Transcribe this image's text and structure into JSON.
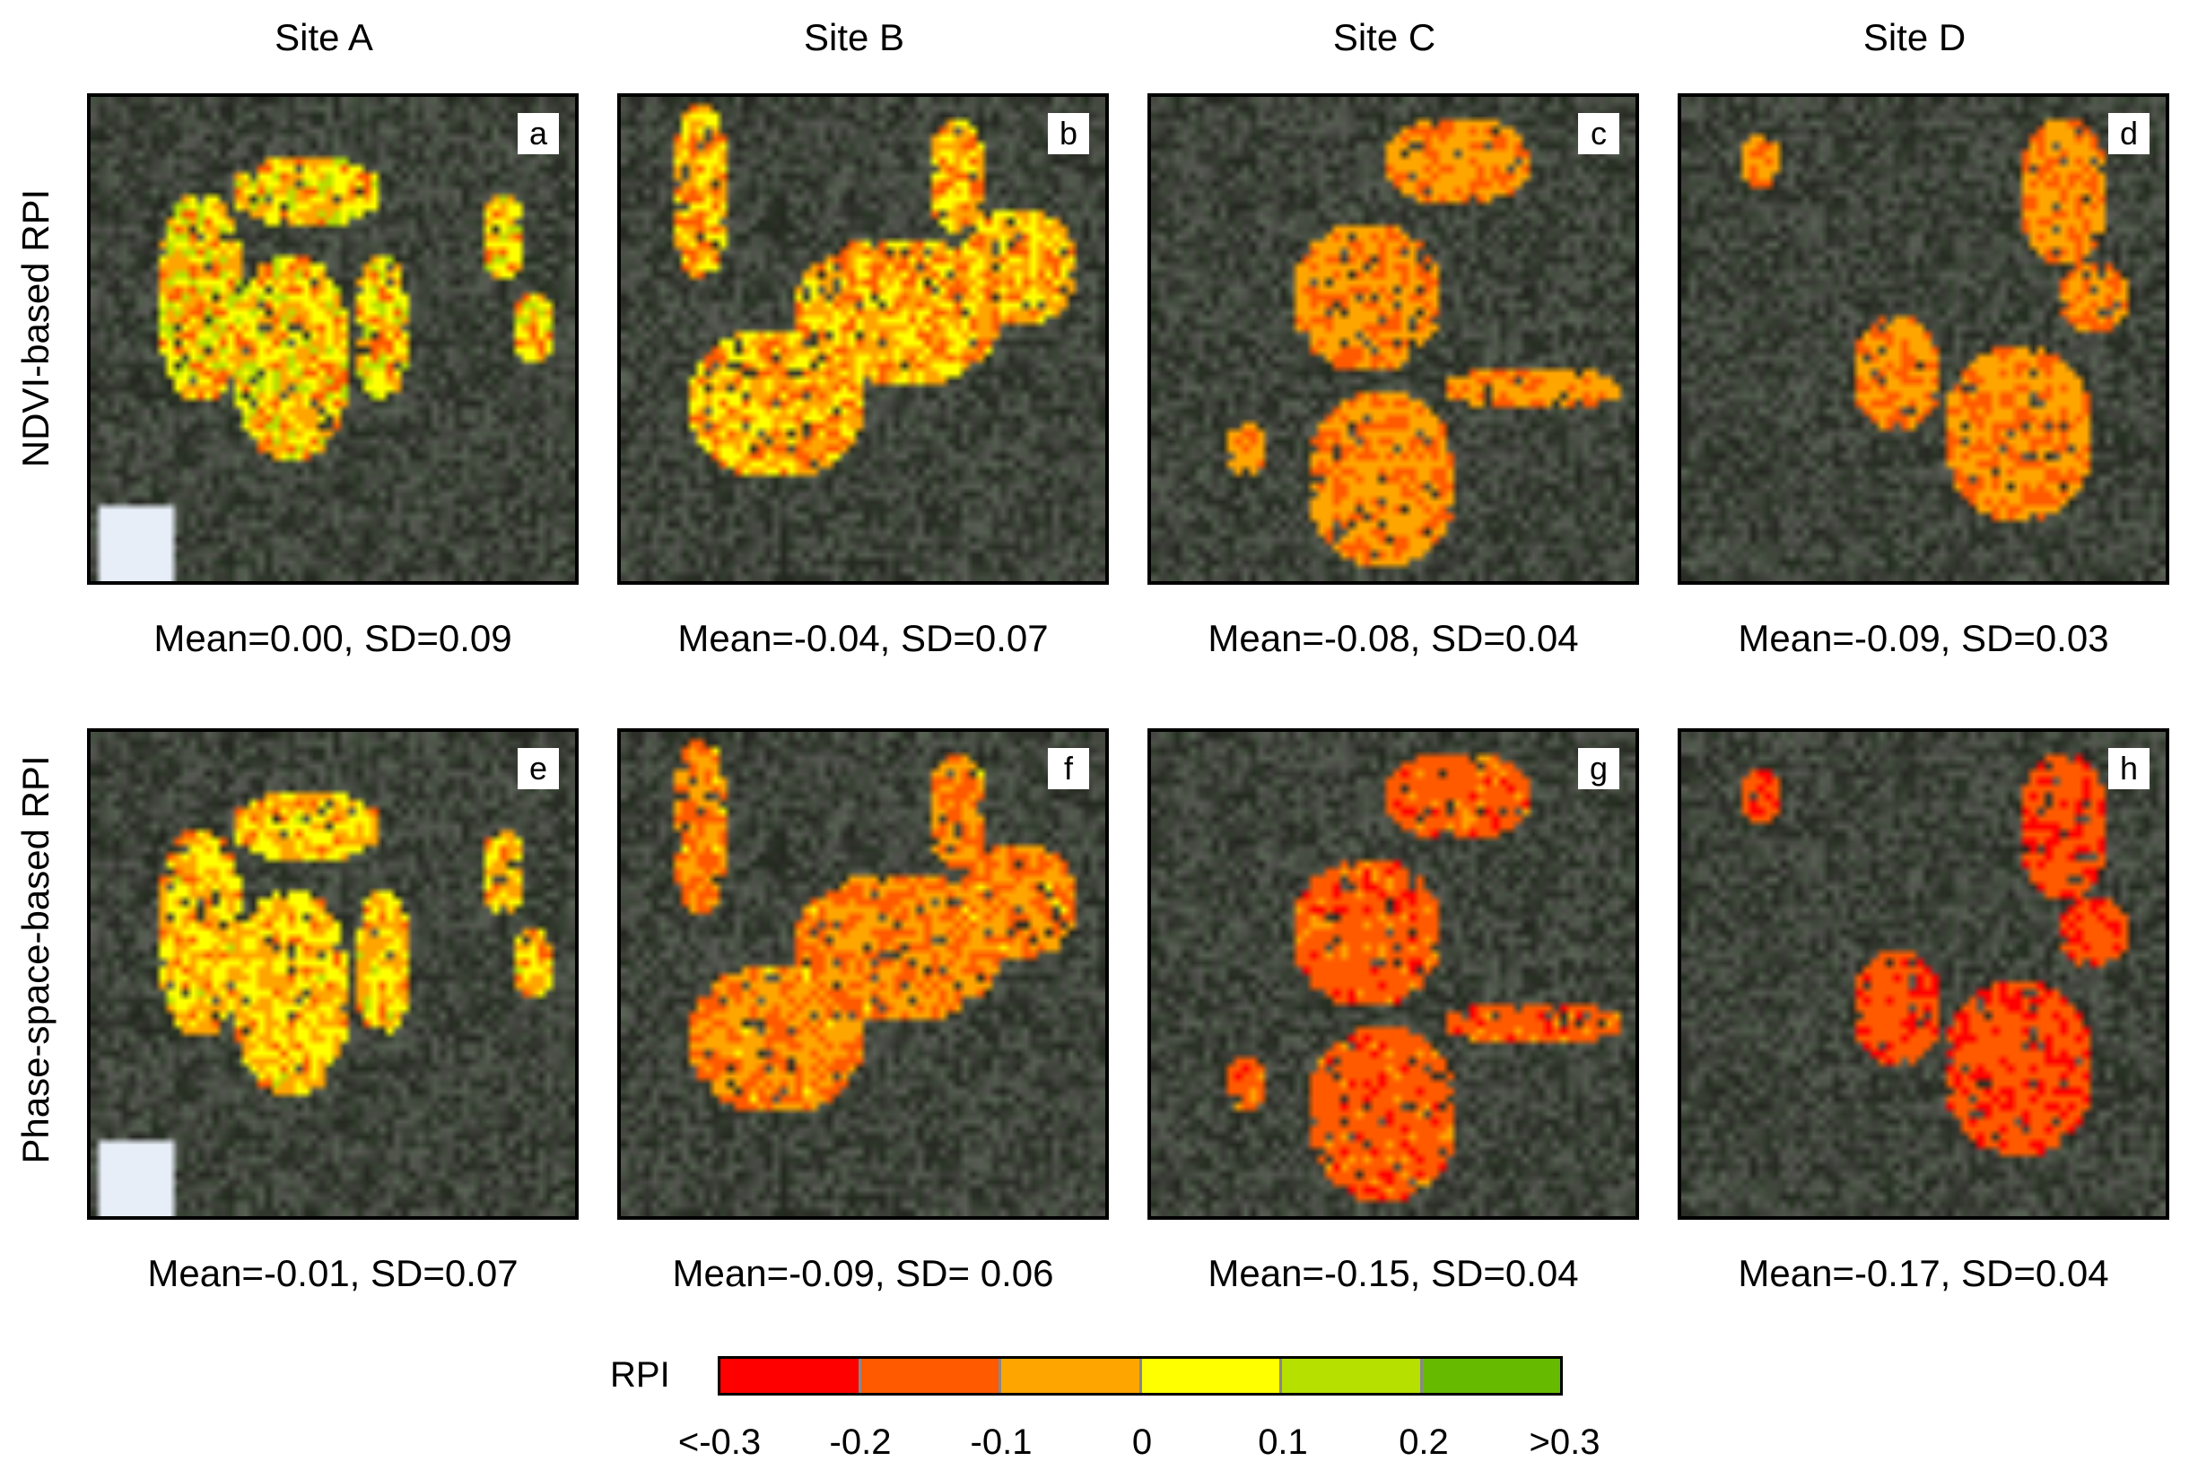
{
  "columns": [
    "Site A",
    "Site B",
    "Site C",
    "Site D"
  ],
  "rows": [
    "NDVI-based RPI",
    "Phase-space-based RPI"
  ],
  "panels": [
    {
      "letter": "a",
      "stats": "Mean=0.00, SD=0.09",
      "mean": 0.0,
      "sd": 0.09
    },
    {
      "letter": "b",
      "stats": "Mean=-0.04, SD=0.07",
      "mean": -0.04,
      "sd": 0.07
    },
    {
      "letter": "c",
      "stats": "Mean=-0.08, SD=0.04",
      "mean": -0.08,
      "sd": 0.04
    },
    {
      "letter": "d",
      "stats": "Mean=-0.09, SD=0.03",
      "mean": -0.09,
      "sd": 0.03
    },
    {
      "letter": "e",
      "stats": "Mean=-0.01, SD=0.07",
      "mean": -0.01,
      "sd": 0.07
    },
    {
      "letter": "f",
      "stats": "Mean=-0.09, SD= 0.06",
      "mean": -0.09,
      "sd": 0.06
    },
    {
      "letter": "g",
      "stats": "Mean=-0.15, SD=0.04",
      "mean": -0.15,
      "sd": 0.04
    },
    {
      "letter": "h",
      "stats": "Mean=-0.17, SD=0.04",
      "mean": -0.17,
      "sd": 0.04
    }
  ],
  "legend": {
    "title": "RPI",
    "colors": [
      "#ff0000",
      "#ff5a00",
      "#ffa500",
      "#ffff00",
      "#b5e000",
      "#66bb00"
    ],
    "ticks": [
      "<-0.3",
      "-0.2",
      "-0.1",
      "0",
      "0.1",
      "0.2",
      ">0.3"
    ]
  }
}
